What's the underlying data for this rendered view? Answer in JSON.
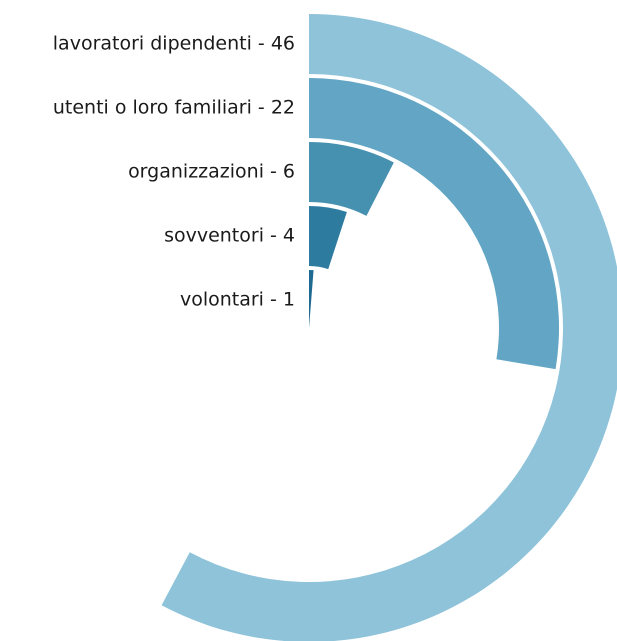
{
  "chart_data": {
    "type": "radial-bar",
    "categories": [
      "lavoratori dipendenti - 46",
      "utenti o loro familiari - 22",
      "organizzazioni - 6",
      "sovventori - 4",
      "volontari - 1"
    ],
    "values": [
      46,
      22,
      6,
      4,
      1
    ],
    "colors": [
      "#8ec3da",
      "#62a5c4",
      "#4690b0",
      "#2e7ba0",
      "#1f6a92"
    ]
  }
}
